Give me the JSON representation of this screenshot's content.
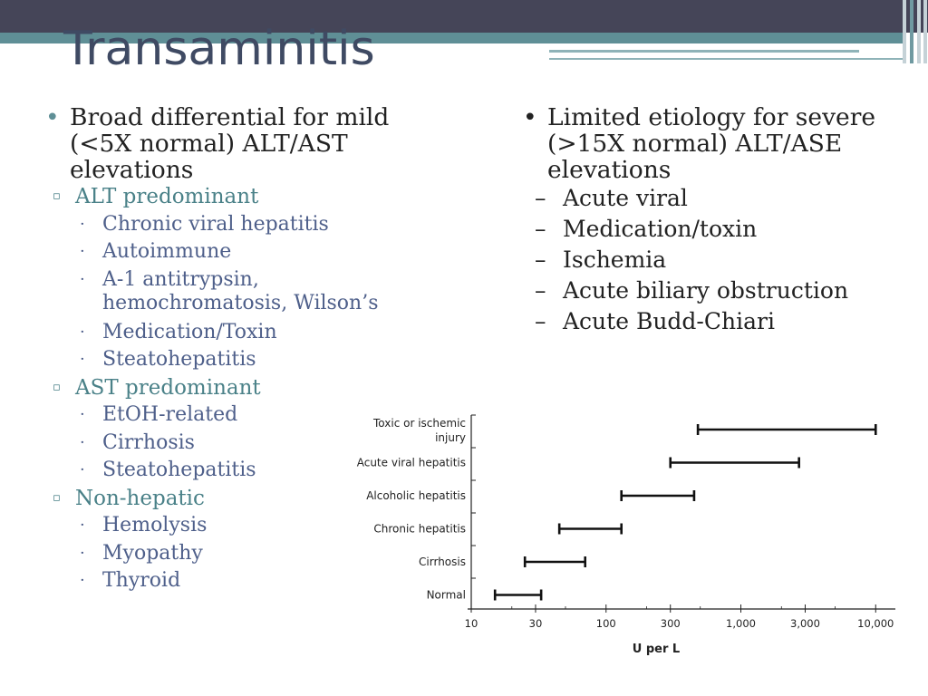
{
  "slide": {
    "title": "Transaminitis"
  },
  "left": {
    "bullet": "Broad differential for mild (<5X normal) ALT/AST elevations",
    "groups": [
      {
        "label": "ALT predominant",
        "items": [
          "Chronic viral hepatitis",
          "Autoimmune",
          "A-1 antitrypsin, hemochromatosis, Wilson’s",
          "Medication/Toxin",
          "Steatohepatitis"
        ]
      },
      {
        "label": "AST predominant",
        "items": [
          "EtOH-related",
          "Cirrhosis",
          "Steatohepatitis"
        ]
      },
      {
        "label": "Non-hepatic",
        "items": [
          "Hemolysis",
          "Myopathy",
          "Thyroid"
        ]
      }
    ]
  },
  "right": {
    "bullet": "Limited etiology for severe (>15X normal) ALT/ASE elevations",
    "items": [
      "Acute viral",
      "Medication/toxin",
      "Ischemia",
      "Acute biliary obstruction",
      "Acute Budd-Chiari"
    ]
  },
  "chart_data": {
    "type": "range-bar",
    "xlabel": "U per L",
    "xscale": "log",
    "xlim": [
      10,
      14000
    ],
    "xticks": [
      10,
      30,
      100,
      300,
      1000,
      3000,
      10000
    ],
    "xtick_labels": [
      "10",
      "30",
      "100",
      "300",
      "1,000",
      "3,000",
      "10,000"
    ],
    "categories": [
      [
        "Toxic or ischemic",
        "injury"
      ],
      [
        "Acute viral hepatitis"
      ],
      [
        "Alcoholic hepatitis"
      ],
      [
        "Chronic hepatitis"
      ],
      [
        "Cirrhosis"
      ],
      [
        "Normal"
      ]
    ],
    "ranges": [
      [
        480,
        10000
      ],
      [
        300,
        2700
      ],
      [
        130,
        450
      ],
      [
        45,
        130
      ],
      [
        25,
        70
      ],
      [
        15,
        33
      ]
    ]
  }
}
